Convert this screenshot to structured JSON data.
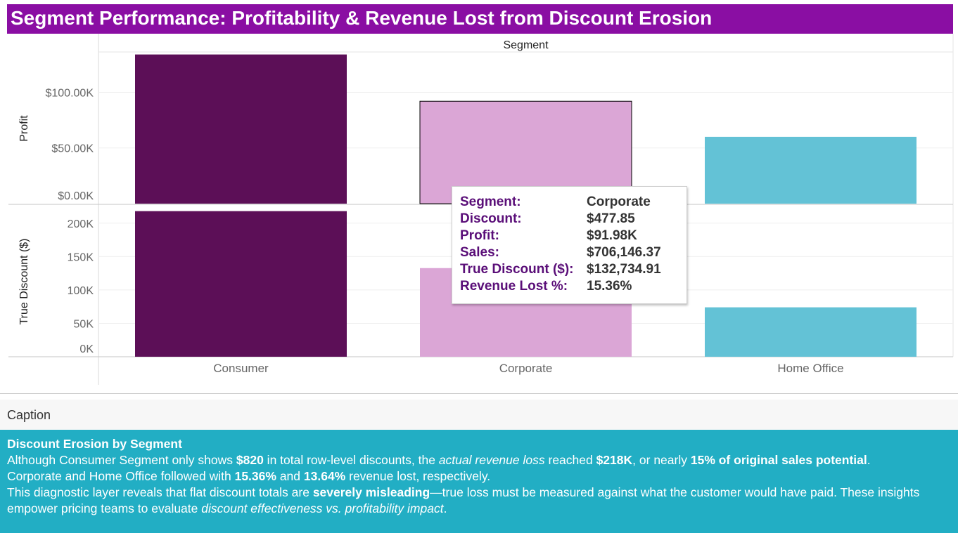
{
  "title": "Segment Performance: Profitability & Revenue Lost from Discount Erosion",
  "colors": {
    "title_bg": "#8a0ea3",
    "consumer": "#5c0f57",
    "corporate": "#dba6d6",
    "home_office": "#63c2d6",
    "caption_bg": "#22aec4",
    "tooltip_key": "#5a0e78"
  },
  "chart_data": {
    "type": "bar",
    "column_header": "Segment",
    "categories": [
      "Consumer",
      "Corporate",
      "Home Office"
    ],
    "panels": [
      {
        "name": "Profit",
        "ylabel": "Profit",
        "ylim": [
          0,
          135000
        ],
        "ticks": [
          0,
          50000,
          100000
        ],
        "tick_labels": [
          "$0.00K",
          "$50.00K",
          "$100.00K"
        ],
        "values": [
          134000,
          91980,
          60000
        ]
      },
      {
        "name": "True Discount ($)",
        "ylabel": "True Discount ($)",
        "ylim": [
          0,
          225000
        ],
        "ticks": [
          0,
          50000,
          100000,
          150000,
          200000
        ],
        "tick_labels": [
          "0K",
          "50K",
          "100K",
          "150K",
          "200K"
        ],
        "values": [
          218000,
          132734.91,
          74000
        ]
      }
    ],
    "highlighted_category": "Corporate"
  },
  "tooltip": {
    "rows": [
      {
        "key": "Segment:",
        "value": "Corporate"
      },
      {
        "key": "Discount:",
        "value": "$477.85"
      },
      {
        "key": "Profit:",
        "value": "$91.98K"
      },
      {
        "key": "Sales:",
        "value": "$706,146.37"
      },
      {
        "key": "True Discount ($):",
        "value": "$132,734.91"
      },
      {
        "key": "Revenue Lost %:",
        "value": "15.36%"
      }
    ]
  },
  "caption": {
    "header": "Caption",
    "heading": "Discount Erosion by Segment",
    "line1": {
      "a": "Although Consumer Segment only shows ",
      "b": "$820",
      "c": " in total row-level discounts, the ",
      "d": "actual revenue loss",
      "e": " reached ",
      "f": "$218K",
      "g": ", or nearly ",
      "h": "15% of original sales potential",
      "i": "."
    },
    "line2": {
      "a": "Corporate and Home Office followed with ",
      "b": "15.36%",
      "c": " and ",
      "d": "13.64%",
      "e": " revenue lost, respectively."
    },
    "line3": {
      "a": "This diagnostic layer reveals that flat discount totals are ",
      "b": "severely misleading",
      "c": "—true loss must be measured against what the customer would have paid. These insights empower pricing teams to evaluate ",
      "d": "discount effectiveness vs. profitability impact",
      "e": "."
    }
  }
}
